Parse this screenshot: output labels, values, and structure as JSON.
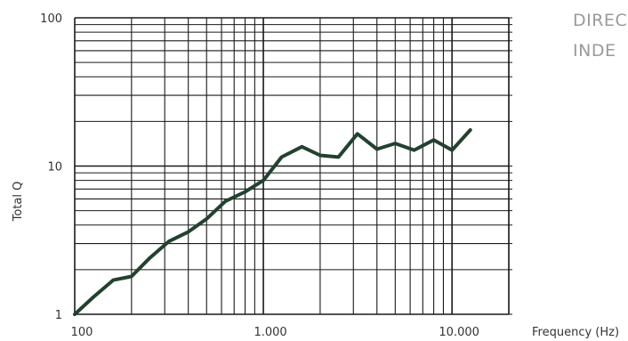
{
  "side_text": {
    "line1": "DIREC",
    "line2": "INDE"
  },
  "chart_data": {
    "type": "line",
    "title": "",
    "xlabel": "Frequency (Hz)",
    "ylabel": "Total Q",
    "xscale": "log",
    "yscale": "log",
    "xlim": [
      100,
      20000
    ],
    "ylim": [
      1,
      100
    ],
    "grid": true,
    "x_tick_labels": [
      {
        "value": 100,
        "label": "100"
      },
      {
        "value": 1000,
        "label": "1.000"
      },
      {
        "value": 10000,
        "label": "10.000"
      }
    ],
    "y_tick_labels": [
      {
        "value": 1,
        "label": "1"
      },
      {
        "value": 10,
        "label": "10"
      },
      {
        "value": 100,
        "label": "100"
      }
    ],
    "line_color": "#23412f",
    "series": [
      {
        "x": [
          100,
          125,
          160,
          200,
          250,
          315,
          400,
          500,
          630,
          800,
          1000,
          1250,
          1600,
          2000,
          2500,
          3150,
          4000,
          5000,
          6300,
          8000,
          10000,
          12500
        ],
        "values": [
          1.0,
          1.3,
          1.7,
          1.8,
          2.4,
          3.1,
          3.6,
          4.4,
          5.8,
          6.7,
          8.0,
          11.5,
          13.5,
          11.8,
          11.5,
          16.5,
          13.0,
          14.2,
          12.8,
          15.0,
          12.8,
          17.5
        ]
      }
    ]
  }
}
